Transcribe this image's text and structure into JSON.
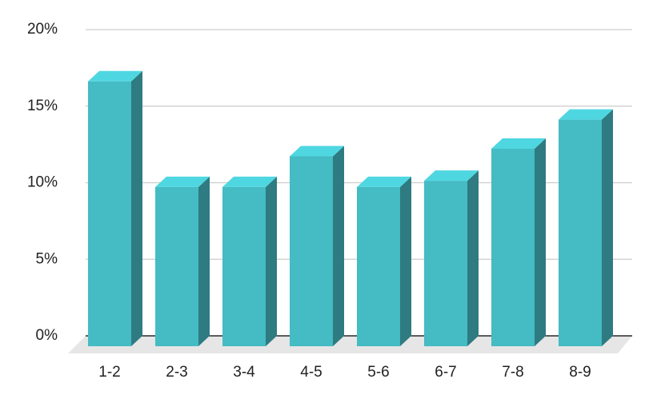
{
  "chart_data": {
    "type": "bar3d",
    "categories": [
      "1-2",
      "2-3",
      "3-4",
      "4-5",
      "5-6",
      "6-7",
      "7-8",
      "8-9"
    ],
    "values": [
      17.3,
      10.4,
      10.4,
      12.4,
      10.4,
      10.8,
      12.9,
      14.8
    ],
    "color": "#45bbc4",
    "ylim": [
      0,
      20
    ],
    "yticks": [
      {
        "value": 0,
        "label": "0%"
      },
      {
        "value": 5,
        "label": "5%"
      },
      {
        "value": 10,
        "label": "10%"
      },
      {
        "value": 15,
        "label": "15%"
      },
      {
        "value": 20,
        "label": "20%"
      }
    ],
    "grid": true
  }
}
